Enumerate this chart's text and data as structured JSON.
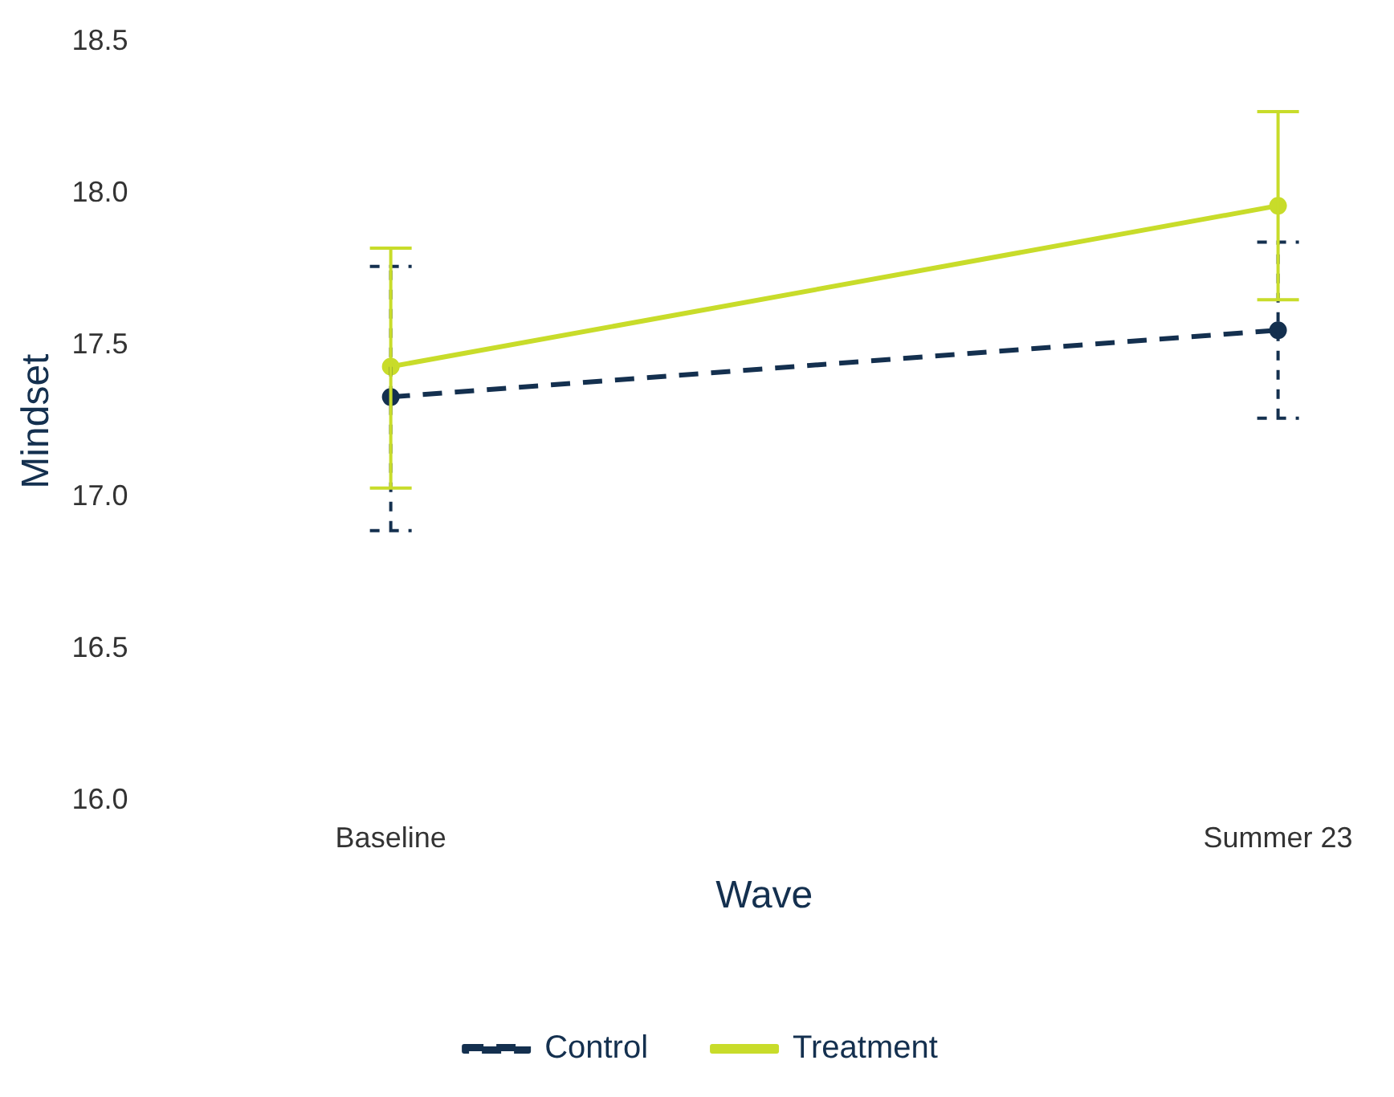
{
  "chart_data": {
    "type": "line",
    "xlabel": "Wave",
    "ylabel": "Mindset",
    "categories": [
      "Baseline",
      "Summer 23"
    ],
    "series": [
      {
        "name": "Control",
        "color": "#14304f",
        "values": [
          17.33,
          17.55
        ],
        "errors": [
          [
            16.89,
            17.76
          ],
          [
            17.26,
            17.84
          ]
        ],
        "line_style": "dashed"
      },
      {
        "name": "Treatment",
        "color": "#c8dc2a",
        "values": [
          17.43,
          17.96
        ],
        "errors": [
          [
            17.03,
            17.82
          ],
          [
            17.65,
            18.27
          ]
        ],
        "line_style": "solid"
      }
    ],
    "ylim": [
      16,
      18.5
    ],
    "yticks": [
      {
        "value": 16,
        "label": "16.0"
      },
      16.5,
      {
        "value": 17,
        "label": "17.0"
      },
      17.5,
      {
        "value": 18,
        "label": "18.0"
      },
      18.5
    ],
    "grid": false,
    "legend": "bottom",
    "marker": "circle"
  }
}
